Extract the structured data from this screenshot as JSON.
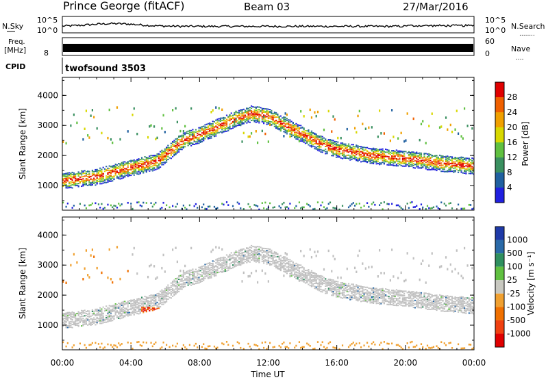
{
  "header": {
    "station": "Prince George (fitACF)",
    "beam": "Beam 03",
    "date": "27/Mar/2016"
  },
  "strip_labels": {
    "nsky": "N.Sky",
    "nsky_ticks": [
      "10^5",
      "10^0"
    ],
    "nsearch": "N.Search",
    "nsearch_dots": "........",
    "freq_line1": "Freq.",
    "freq_line2": "[MHz]",
    "freq_ticks": [
      "8"
    ],
    "nave_ticks": [
      "60",
      "0"
    ],
    "nave": "Nave",
    "nave_dots": "....",
    "cpid_label": "CPID",
    "cpid_value": "twofsound 3503",
    "right_ticks": [
      "10^5",
      "10^0"
    ]
  },
  "colors": {
    "power": [
      "#2020e0",
      "#2060a0",
      "#3a9060",
      "#60c040",
      "#d8d800",
      "#f0a000",
      "#f06000",
      "#e00000"
    ],
    "velocity_neg": [
      "#e00000",
      "#f04010",
      "#f07000",
      "#f0a030"
    ],
    "velocity_pos": [
      "#c8c8c0",
      "#60c040",
      "#2f8f5f",
      "#2a6aa8",
      "#1f3aa8"
    ],
    "ground": "#c0c0c0"
  },
  "chart_data": [
    {
      "type": "heatmap",
      "title": "",
      "xlabel": "",
      "ylabel": "Slant Range [km]",
      "x_ticks": [
        "00:00",
        "04:00",
        "08:00",
        "12:00",
        "16:00",
        "20:00",
        "00:00"
      ],
      "y_ticks": [
        "1000",
        "2000",
        "3000",
        "4000"
      ],
      "ylim": [
        180,
        4600
      ],
      "colorbar": {
        "label": "Power [dB]",
        "ticks": [
          "4",
          "8",
          "12",
          "16",
          "20",
          "24",
          "28"
        ],
        "range": [
          0,
          30
        ]
      },
      "echo_track_km": [
        [
          0,
          1150
        ],
        [
          2,
          1300
        ],
        [
          4,
          1600
        ],
        [
          5.5,
          1800
        ],
        [
          7,
          2500
        ],
        [
          8,
          2700
        ],
        [
          9,
          2950
        ],
        [
          10,
          3200
        ],
        [
          11,
          3400
        ],
        [
          12,
          3300
        ],
        [
          13,
          3000
        ],
        [
          14,
          2700
        ],
        [
          15,
          2400
        ],
        [
          16,
          2200
        ],
        [
          18,
          2000
        ],
        [
          20,
          1900
        ],
        [
          22,
          1750
        ],
        [
          24,
          1650
        ]
      ]
    },
    {
      "type": "heatmap",
      "title": "",
      "xlabel": "Time UT",
      "ylabel": "Slant Range [km]",
      "x_ticks": [
        "00:00",
        "04:00",
        "08:00",
        "12:00",
        "16:00",
        "20:00",
        "00:00"
      ],
      "y_ticks": [
        "1000",
        "2000",
        "3000",
        "4000"
      ],
      "ylim": [
        180,
        4600
      ],
      "colorbar": {
        "label": "Velocity [m s⁻¹]",
        "ticks": [
          "1000",
          "500",
          "100",
          "25",
          "-25",
          "-100",
          "-500",
          "-1000"
        ]
      }
    }
  ]
}
